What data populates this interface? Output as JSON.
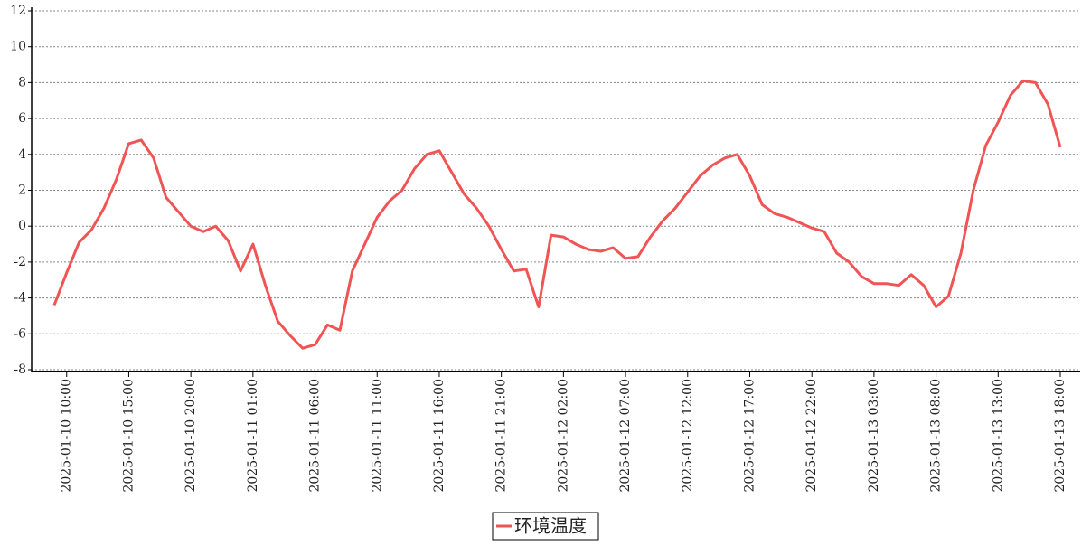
{
  "chart_data": {
    "type": "line",
    "x": [
      "2025-01-10 09:00",
      "2025-01-10 10:00",
      "2025-01-10 11:00",
      "2025-01-10 12:00",
      "2025-01-10 13:00",
      "2025-01-10 14:00",
      "2025-01-10 15:00",
      "2025-01-10 16:00",
      "2025-01-10 17:00",
      "2025-01-10 18:00",
      "2025-01-10 19:00",
      "2025-01-10 20:00",
      "2025-01-10 21:00",
      "2025-01-10 22:00",
      "2025-01-10 23:00",
      "2025-01-11 00:00",
      "2025-01-11 01:00",
      "2025-01-11 02:00",
      "2025-01-11 03:00",
      "2025-01-11 04:00",
      "2025-01-11 05:00",
      "2025-01-11 06:00",
      "2025-01-11 07:00",
      "2025-01-11 08:00",
      "2025-01-11 09:00",
      "2025-01-11 10:00",
      "2025-01-11 11:00",
      "2025-01-11 12:00",
      "2025-01-11 13:00",
      "2025-01-11 14:00",
      "2025-01-11 15:00",
      "2025-01-11 16:00",
      "2025-01-11 17:00",
      "2025-01-11 18:00",
      "2025-01-11 19:00",
      "2025-01-11 20:00",
      "2025-01-11 21:00",
      "2025-01-11 22:00",
      "2025-01-11 23:00",
      "2025-01-12 00:00",
      "2025-01-12 01:00",
      "2025-01-12 02:00",
      "2025-01-12 03:00",
      "2025-01-12 04:00",
      "2025-01-12 05:00",
      "2025-01-12 06:00",
      "2025-01-12 07:00",
      "2025-01-12 08:00",
      "2025-01-12 09:00",
      "2025-01-12 10:00",
      "2025-01-12 11:00",
      "2025-01-12 12:00",
      "2025-01-12 13:00",
      "2025-01-12 14:00",
      "2025-01-12 15:00",
      "2025-01-12 16:00",
      "2025-01-12 17:00",
      "2025-01-12 18:00",
      "2025-01-12 19:00",
      "2025-01-12 20:00",
      "2025-01-12 21:00",
      "2025-01-12 22:00",
      "2025-01-12 23:00",
      "2025-01-13 00:00",
      "2025-01-13 01:00",
      "2025-01-13 02:00",
      "2025-01-13 03:00",
      "2025-01-13 04:00",
      "2025-01-13 05:00",
      "2025-01-13 06:00",
      "2025-01-13 07:00",
      "2025-01-13 08:00",
      "2025-01-13 09:00",
      "2025-01-13 10:00",
      "2025-01-13 11:00",
      "2025-01-13 12:00",
      "2025-01-13 13:00",
      "2025-01-13 14:00",
      "2025-01-13 15:00",
      "2025-01-13 16:00",
      "2025-01-13 17:00",
      "2025-01-13 18:00"
    ],
    "series": [
      {
        "name": "环境温度",
        "color": "#f05454",
        "values": [
          -4.4,
          -2.6,
          -0.9,
          -0.2,
          1.0,
          2.6,
          4.6,
          4.8,
          3.8,
          1.6,
          0.8,
          0.0,
          -0.3,
          0.0,
          -0.8,
          -2.5,
          -1.0,
          -3.3,
          -5.3,
          -6.1,
          -6.8,
          -6.6,
          -5.5,
          -5.8,
          -2.5,
          -1.0,
          0.5,
          1.4,
          2.0,
          3.2,
          4.0,
          4.2,
          3.0,
          1.8,
          1.0,
          0.0,
          -1.3,
          -2.5,
          -2.4,
          -4.5,
          -0.5,
          -0.6,
          -1.0,
          -1.3,
          -1.4,
          -1.2,
          -1.8,
          -1.7,
          -0.6,
          0.3,
          1.0,
          1.9,
          2.8,
          3.4,
          3.8,
          4.0,
          2.8,
          1.2,
          0.7,
          0.5,
          0.2,
          -0.1,
          -0.3,
          -1.5,
          -2.0,
          -2.8,
          -3.2,
          -3.2,
          -3.3,
          -2.7,
          -3.3,
          -4.5,
          -3.9,
          -1.5,
          2.0,
          4.5,
          5.8,
          7.3,
          8.1,
          8.0,
          6.8,
          4.4
        ]
      }
    ],
    "xticks": [
      "2025-01-10 10:00",
      "2025-01-10 15:00",
      "2025-01-10 20:00",
      "2025-01-11 01:00",
      "2025-01-11 06:00",
      "2025-01-11 11:00",
      "2025-01-11 16:00",
      "2025-01-11 21:00",
      "2025-01-12 02:00",
      "2025-01-12 07:00",
      "2025-01-12 12:00",
      "2025-01-12 17:00",
      "2025-01-12 22:00",
      "2025-01-13 03:00",
      "2025-01-13 08:00",
      "2025-01-13 13:00",
      "2025-01-13 18:00"
    ],
    "ylim": [
      -8,
      12
    ],
    "yticks": [
      -8,
      -6,
      -4,
      -2,
      0,
      2,
      4,
      6,
      8,
      10,
      12
    ],
    "grid": true
  }
}
